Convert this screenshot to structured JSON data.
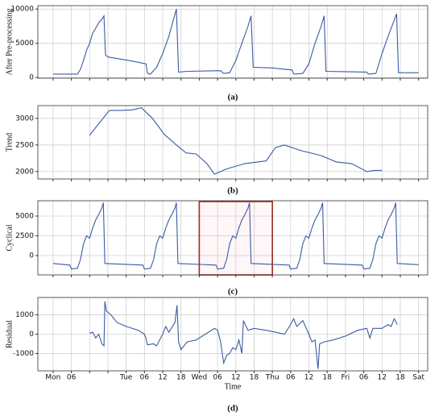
{
  "chart_data": [
    {
      "type": "line",
      "label": "(a)",
      "ylabel": "After Pre-processing",
      "color": "#3b5ba5",
      "grid": true,
      "xlim": [
        -5,
        123
      ],
      "xticks": [
        0,
        6,
        12,
        18,
        24,
        30,
        36,
        42,
        48,
        54,
        60,
        66,
        72,
        78,
        84,
        90,
        96,
        102,
        108,
        114,
        120
      ],
      "ylim": [
        -100,
        10500
      ],
      "yticks": [
        0,
        5000,
        10000
      ],
      "x": [
        0,
        8,
        9,
        10,
        11,
        12,
        13,
        14,
        15,
        16,
        16.7,
        17.2,
        18,
        22,
        26,
        30.5,
        31,
        32,
        34,
        36,
        38,
        40.5,
        41.2,
        44,
        55,
        56,
        58,
        60,
        62,
        64,
        65,
        65.7,
        72,
        78.5,
        79,
        82,
        84,
        86,
        88,
        89,
        89.6,
        96,
        103,
        103.5,
        106,
        108,
        110,
        112.8,
        113.4,
        120
      ],
      "values": [
        500,
        500,
        1200,
        2500,
        4000,
        5000,
        6500,
        7200,
        8000,
        8500,
        9000,
        3300,
        3000,
        2700,
        2400,
        2000,
        600,
        500,
        1500,
        3500,
        6000,
        10000,
        800,
        900,
        1000,
        600,
        700,
        2500,
        5000,
        7500,
        9000,
        1500,
        1400,
        1100,
        500,
        600,
        2000,
        5000,
        7500,
        9000,
        900,
        850,
        800,
        500,
        600,
        3500,
        6000,
        9300,
        700,
        700
      ]
    },
    {
      "type": "line",
      "label": "(b)",
      "ylabel": "Trend",
      "color": "#3b5ba5",
      "grid": true,
      "xlim": [
        -5,
        123
      ],
      "xticks": [
        0,
        6,
        12,
        18,
        24,
        30,
        36,
        42,
        48,
        54,
        60,
        66,
        72,
        78,
        84,
        90,
        96,
        102,
        108,
        114,
        120
      ],
      "ylim": [
        1860,
        3240
      ],
      "yticks": [
        2000,
        2500,
        3000
      ],
      "x": [
        12,
        15,
        18.5,
        22,
        26,
        29,
        32.6,
        36.5,
        40.5,
        43.7,
        47,
        50.5,
        53,
        57,
        63,
        70,
        73,
        76,
        81,
        88,
        93,
        98,
        103,
        105.5,
        108
      ],
      "values": [
        2680,
        2900,
        3150,
        3150,
        3160,
        3200,
        3000,
        2700,
        2500,
        2350,
        2330,
        2150,
        1950,
        2050,
        2150,
        2200,
        2450,
        2500,
        2400,
        2300,
        2180,
        2150,
        2000,
        2020,
        2020
      ]
    },
    {
      "type": "line",
      "label": "(c)",
      "ylabel": "Cyclical",
      "color": "#3b5ba5",
      "grid": true,
      "xlim": [
        -5,
        123
      ],
      "xticks": [
        0,
        6,
        12,
        18,
        24,
        30,
        36,
        42,
        48,
        54,
        60,
        66,
        72,
        78,
        84,
        90,
        96,
        102,
        108,
        114,
        120
      ],
      "ylim": [
        -2450,
        6940
      ],
      "yticks": [
        0,
        2500,
        5000
      ],
      "highlight": {
        "x": [
          48,
          72
        ],
        "color": "#9a2a22"
      },
      "x": [
        0,
        5.5,
        6,
        8,
        9,
        10,
        11,
        12,
        13,
        14,
        15,
        16,
        16.5,
        17,
        29.5,
        30,
        32,
        33,
        34,
        35,
        36,
        37,
        38,
        39,
        40,
        40.5,
        41,
        53.5,
        54,
        56,
        57,
        58,
        59,
        60,
        61,
        62,
        63,
        64,
        64.5,
        65,
        77.5,
        78,
        80,
        81,
        82,
        83,
        84,
        85,
        86,
        87,
        88,
        88.5,
        89,
        101.5,
        102,
        104,
        105,
        106,
        107,
        108,
        109,
        110,
        111,
        112,
        112.5,
        113,
        120
      ],
      "values": [
        -1000,
        -1200,
        -1700,
        -1600,
        -500,
        1500,
        2500,
        2200,
        3500,
        4500,
        5200,
        6000,
        6700,
        -1000,
        -1200,
        -1700,
        -1600,
        -500,
        1500,
        2500,
        2200,
        3500,
        4500,
        5200,
        6000,
        6700,
        -1000,
        -1200,
        -1700,
        -1600,
        -500,
        1500,
        2500,
        2200,
        3500,
        4500,
        5200,
        6000,
        6700,
        -1000,
        -1200,
        -1700,
        -1600,
        -500,
        1500,
        2500,
        2200,
        3500,
        4500,
        5200,
        6000,
        6700,
        -1000,
        -1200,
        -1700,
        -1600,
        -500,
        1500,
        2500,
        2200,
        3500,
        4500,
        5200,
        6000,
        6700,
        -1000,
        -1150
      ]
    },
    {
      "type": "line",
      "label": "(d)",
      "ylabel": "Residual",
      "xlabel": "Time",
      "color": "#3b5ba5",
      "grid": true,
      "xlim": [
        -5,
        123
      ],
      "xticks": [
        {
          "value": 0,
          "label": "Mon"
        },
        {
          "value": 6,
          "label": "06"
        },
        12,
        18,
        {
          "value": 24,
          "label": "Tue"
        },
        {
          "value": 30,
          "label": "06"
        },
        {
          "value": 36,
          "label": "12"
        },
        {
          "value": 42,
          "label": "18"
        },
        {
          "value": 48,
          "label": "Wed"
        },
        {
          "value": 54,
          "label": "06"
        },
        {
          "value": 60,
          "label": "12"
        },
        {
          "value": 66,
          "label": "18"
        },
        {
          "value": 72,
          "label": "Thu"
        },
        {
          "value": 78,
          "label": "06"
        },
        {
          "value": 84,
          "label": "12"
        },
        {
          "value": 90,
          "label": "18"
        },
        {
          "value": 96,
          "label": "Fri"
        },
        {
          "value": 102,
          "label": "06"
        },
        {
          "value": 108,
          "label": "12"
        },
        {
          "value": 114,
          "label": "18"
        },
        {
          "value": 120,
          "label": "Sat"
        }
      ],
      "ylim": [
        -1900,
        1900
      ],
      "yticks": [
        -1000,
        0,
        1000
      ],
      "x": [
        12,
        13,
        14,
        15,
        16,
        16.7,
        17,
        17.5,
        19,
        21,
        24,
        28,
        30,
        30.5,
        31,
        33,
        34,
        36,
        37,
        38,
        40,
        40.7,
        41.2,
        42,
        44,
        47,
        50,
        53,
        54,
        55,
        56,
        57,
        58,
        59,
        60,
        61,
        62,
        62.5,
        64,
        66,
        70,
        73,
        76,
        78,
        79,
        80,
        82,
        84,
        85,
        86,
        87,
        87.5,
        89,
        92,
        96,
        100,
        103,
        104,
        105,
        108,
        110,
        111,
        112,
        113
      ],
      "values": [
        50,
        100,
        -200,
        0,
        -500,
        -600,
        1700,
        1200,
        1000,
        600,
        400,
        200,
        0,
        -200,
        -550,
        -500,
        -600,
        0,
        400,
        100,
        600,
        1500,
        -400,
        -800,
        -400,
        -300,
        0,
        300,
        200,
        -400,
        -1500,
        -1100,
        -1000,
        -700,
        -800,
        -300,
        -1000,
        700,
        200,
        300,
        200,
        100,
        0,
        500,
        800,
        400,
        700,
        0,
        -400,
        -300,
        -1800,
        -500,
        -400,
        -300,
        -100,
        200,
        300,
        -200,
        300,
        300,
        500,
        400,
        800,
        500
      ]
    }
  ]
}
